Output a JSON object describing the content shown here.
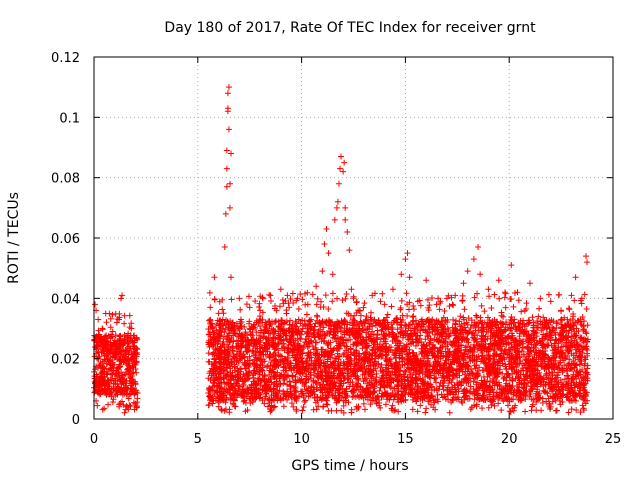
{
  "chart_data": {
    "type": "scatter",
    "title": "Day 180 of 2017, Rate Of TEC Index for receiver grnt",
    "xlabel": "GPS time / hours",
    "ylabel": "ROTI / TECUs",
    "xlim": [
      0,
      25
    ],
    "ylim": [
      0,
      0.12
    ],
    "xticks": [
      "0",
      "5",
      "10",
      "15",
      "20",
      "25"
    ],
    "yticks": [
      "0",
      "0.02",
      "0.04",
      "0.06",
      "0.08",
      "0.1",
      "0.12"
    ],
    "grid": true,
    "marker": "+",
    "color": "#ff0000",
    "series": [
      {
        "name": "ROTI",
        "points": [
          [
            0.05,
            0.038
          ],
          [
            0.1,
            0.036
          ],
          [
            0.2,
            0.033
          ],
          [
            0.25,
            0.028
          ],
          [
            0.4,
            0.03
          ],
          [
            0.5,
            0.021
          ],
          [
            0.9,
            0.029
          ],
          [
            1.1,
            0.032
          ],
          [
            1.2,
            0.033
          ],
          [
            1.3,
            0.04
          ],
          [
            1.35,
            0.041
          ],
          [
            1.6,
            0.027
          ],
          [
            1.8,
            0.03
          ],
          [
            1.9,
            0.024
          ],
          [
            2.0,
            0.022
          ],
          [
            1.6,
            0.004
          ],
          [
            0.6,
            0.008
          ],
          [
            0.1,
            0.006
          ],
          [
            5.6,
            0.037
          ],
          [
            5.8,
            0.047
          ],
          [
            6.0,
            0.035
          ],
          [
            6.2,
            0.033
          ],
          [
            6.3,
            0.057
          ],
          [
            6.35,
            0.068
          ],
          [
            6.4,
            0.077
          ],
          [
            6.4,
            0.083
          ],
          [
            6.4,
            0.089
          ],
          [
            6.45,
            0.102
          ],
          [
            6.45,
            0.103
          ],
          [
            6.45,
            0.108
          ],
          [
            6.5,
            0.11
          ],
          [
            6.5,
            0.096
          ],
          [
            6.55,
            0.078
          ],
          [
            6.55,
            0.07
          ],
          [
            6.6,
            0.088
          ],
          [
            6.6,
            0.047
          ],
          [
            7.0,
            0.04
          ],
          [
            7.5,
            0.037
          ],
          [
            8.0,
            0.036
          ],
          [
            8.5,
            0.041
          ],
          [
            8.8,
            0.036
          ],
          [
            9.0,
            0.043
          ],
          [
            9.4,
            0.037
          ],
          [
            9.8,
            0.04
          ],
          [
            10.3,
            0.038
          ],
          [
            10.7,
            0.044
          ],
          [
            11.0,
            0.049
          ],
          [
            11.1,
            0.058
          ],
          [
            11.2,
            0.063
          ],
          [
            11.3,
            0.055
          ],
          [
            11.5,
            0.048
          ],
          [
            11.6,
            0.066
          ],
          [
            11.7,
            0.07
          ],
          [
            11.75,
            0.072
          ],
          [
            11.8,
            0.078
          ],
          [
            11.85,
            0.083
          ],
          [
            11.9,
            0.087
          ],
          [
            12.0,
            0.082
          ],
          [
            12.05,
            0.085
          ],
          [
            12.1,
            0.07
          ],
          [
            12.1,
            0.066
          ],
          [
            12.2,
            0.062
          ],
          [
            12.3,
            0.056
          ],
          [
            12.4,
            0.043
          ],
          [
            12.8,
            0.036
          ],
          [
            13.4,
            0.041
          ],
          [
            13.8,
            0.039
          ],
          [
            14.0,
            0.038
          ],
          [
            14.4,
            0.043
          ],
          [
            14.8,
            0.048
          ],
          [
            15.0,
            0.053
          ],
          [
            15.1,
            0.055
          ],
          [
            15.2,
            0.047
          ],
          [
            15.6,
            0.039
          ],
          [
            16.0,
            0.046
          ],
          [
            16.5,
            0.038
          ],
          [
            17.0,
            0.04
          ],
          [
            17.4,
            0.041
          ],
          [
            17.8,
            0.045
          ],
          [
            18.0,
            0.049
          ],
          [
            18.3,
            0.053
          ],
          [
            18.5,
            0.057
          ],
          [
            18.6,
            0.048
          ],
          [
            19.0,
            0.043
          ],
          [
            19.5,
            0.046
          ],
          [
            19.8,
            0.042
          ],
          [
            20.1,
            0.051
          ],
          [
            20.4,
            0.042
          ],
          [
            21.0,
            0.045
          ],
          [
            21.5,
            0.04
          ],
          [
            22.0,
            0.039
          ],
          [
            22.5,
            0.036
          ],
          [
            23.0,
            0.041
          ],
          [
            23.2,
            0.047
          ],
          [
            23.5,
            0.04
          ],
          [
            23.7,
            0.054
          ],
          [
            23.75,
            0.052
          ],
          [
            23.6,
            0.003
          ],
          [
            22.0,
            0.004
          ],
          [
            13.0,
            0.005
          ],
          [
            9.6,
            0.004
          ]
        ],
        "bands": [
          {
            "x": [
              0,
              2.1
            ],
            "base": [
              0.008,
              0.028
            ],
            "spikes": 0.035
          },
          {
            "x": [
              5.5,
              23.8
            ],
            "base": [
              0.006,
              0.033
            ],
            "spikes": 0.042
          }
        ]
      }
    ]
  }
}
